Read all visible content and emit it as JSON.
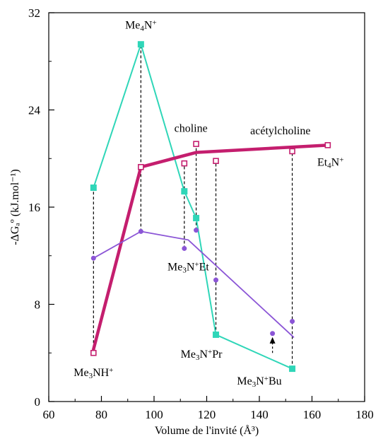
{
  "chart_data": {
    "type": "line",
    "xlabel": "Volume de l'invité (Å³)",
    "ylabel": "-ΔGₐº (kJ.mol⁻¹)",
    "xlim": [
      60,
      180
    ],
    "ylim": [
      0,
      32
    ],
    "xticks": [
      60,
      80,
      100,
      120,
      140,
      160,
      180
    ],
    "yticks": [
      0,
      8,
      16,
      24,
      32
    ],
    "grid": false,
    "series": [
      {
        "id": "green",
        "marker": "square-filled",
        "color": "#2fd6b8",
        "x": [
          77,
          95,
          111.5,
          116,
          123.5,
          152.5
        ],
        "y": [
          17.6,
          29.4,
          17.3,
          15.1,
          5.5,
          2.7
        ]
      },
      {
        "id": "magenta",
        "marker": "square-open",
        "color": "#c41e6e",
        "x": [
          77,
          95,
          111.5,
          116,
          123.5,
          152.5,
          166
        ],
        "y": [
          4.0,
          19.3,
          19.6,
          21.2,
          19.8,
          20.6,
          21.1
        ],
        "line_x": [
          77,
          95,
          116,
          166
        ],
        "line_y": [
          4.3,
          19.3,
          20.5,
          21.1
        ]
      },
      {
        "id": "purple",
        "marker": "circle-filled",
        "color": "#8b55d6",
        "x": [
          77,
          95,
          111.5,
          116,
          123.5,
          145,
          152.5
        ],
        "y": [
          11.8,
          14.0,
          12.6,
          14.1,
          10.0,
          5.6,
          6.6
        ],
        "line_x": [
          77,
          95,
          113,
          153
        ],
        "line_y": [
          11.8,
          14.0,
          13.3,
          5.3
        ]
      }
    ],
    "droplines": [
      {
        "x": 77,
        "y1": 4.0,
        "y2": 17.6
      },
      {
        "x": 95,
        "y1": 14.0,
        "y2": 29.4
      },
      {
        "x": 111.5,
        "y1": 12.6,
        "y2": 19.6
      },
      {
        "x": 116,
        "y1": 14.1,
        "y2": 21.2
      },
      {
        "x": 123.5,
        "y1": 5.5,
        "y2": 19.8
      },
      {
        "x": 152.5,
        "y1": 2.7,
        "y2": 20.6
      }
    ],
    "arrow": {
      "x": 145,
      "y_from": 4.0,
      "y_to": 5.3
    },
    "annotations": [
      {
        "key": "me4n",
        "base": "Me",
        "sub": "4",
        "mid": "N",
        "sup": "+",
        "tail": "",
        "x": 95,
        "y": 30.7,
        "anchor": "middle"
      },
      {
        "key": "choline",
        "text": "choline",
        "x": 114,
        "y": 22.2,
        "anchor": "middle"
      },
      {
        "key": "acetylcholine",
        "text": "acétylcholine",
        "x": 148,
        "y": 22.0,
        "anchor": "middle"
      },
      {
        "key": "et4n",
        "base": "Et",
        "sub": "4",
        "mid": "N",
        "sup": "+",
        "tail": "",
        "x": 162,
        "y": 19.4,
        "anchor": "start"
      },
      {
        "key": "me3net",
        "base": "Me",
        "sub": "3",
        "mid": "N",
        "sup": "+",
        "tail": "Et",
        "x": 113,
        "y": 10.8,
        "anchor": "middle"
      },
      {
        "key": "me3npr",
        "base": "Me",
        "sub": "3",
        "mid": "N",
        "sup": "+",
        "tail": "Pr",
        "x": 118,
        "y": 3.6,
        "anchor": "middle"
      },
      {
        "key": "me3nbu",
        "base": "Me",
        "sub": "3",
        "mid": "N",
        "sup": "+",
        "tail": "Bu",
        "x": 140,
        "y": 1.4,
        "anchor": "middle"
      },
      {
        "key": "me3nh",
        "base": "Me",
        "sub": "3",
        "mid": "NH",
        "sup": "+",
        "tail": "",
        "x": 77,
        "y": 2.1,
        "anchor": "middle"
      }
    ]
  }
}
